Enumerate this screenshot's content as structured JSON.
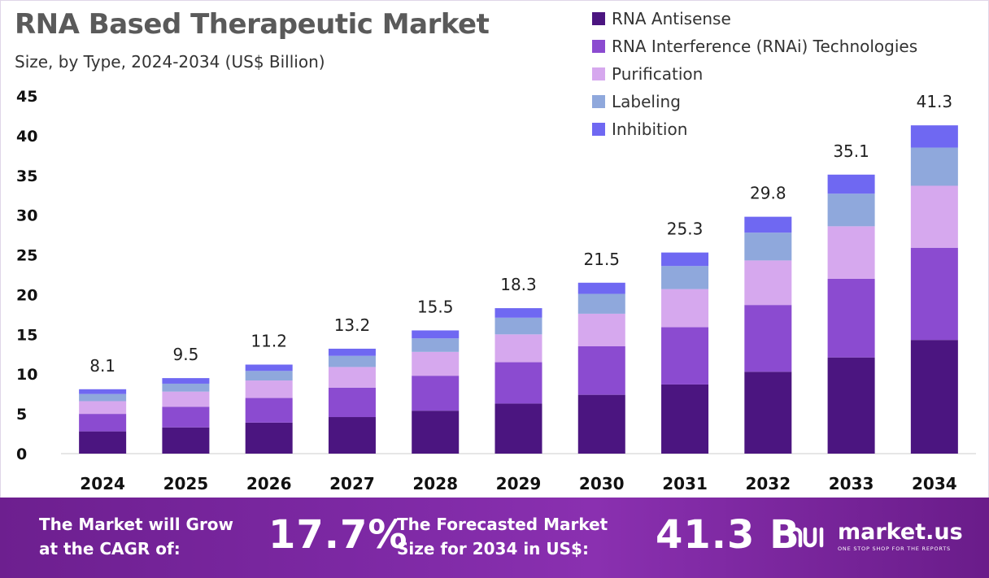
{
  "title": "RNA Based Therapeutic Market",
  "subtitle": "Size, by Type, 2024-2034 (US$ Billion)",
  "chart_data": {
    "type": "bar",
    "stacked": true,
    "title": "RNA Based Therapeutic Market",
    "subtitle": "Size, by Type, 2024-2034 (US$ Billion)",
    "xlabel": "",
    "ylabel": "",
    "ylim": [
      0,
      45
    ],
    "yticks": [
      0,
      5,
      10,
      15,
      20,
      25,
      30,
      35,
      40,
      45
    ],
    "grid": false,
    "legend_position": "top-right",
    "categories": [
      "2024",
      "2025",
      "2026",
      "2027",
      "2028",
      "2029",
      "2030",
      "2031",
      "2032",
      "2033",
      "2034"
    ],
    "totals": [
      "8.1",
      "9.5",
      "11.2",
      "13.2",
      "15.5",
      "18.3",
      "21.5",
      "25.3",
      "29.8",
      "35.1",
      "41.3"
    ],
    "series": [
      {
        "name": "RNA Antisense",
        "color": "#4b1580",
        "values": [
          2.8,
          3.3,
          3.9,
          4.6,
          5.4,
          6.3,
          7.4,
          8.7,
          10.3,
          12.1,
          14.3
        ]
      },
      {
        "name": "RNA Interference (RNAi) Technologies",
        "color": "#8b4bd0",
        "values": [
          2.2,
          2.6,
          3.1,
          3.7,
          4.4,
          5.2,
          6.1,
          7.2,
          8.4,
          9.9,
          11.6
        ]
      },
      {
        "name": "Purification",
        "color": "#d6a8ee",
        "values": [
          1.6,
          1.9,
          2.2,
          2.6,
          3.0,
          3.5,
          4.1,
          4.8,
          5.6,
          6.6,
          7.8
        ]
      },
      {
        "name": "Labeling",
        "color": "#8fa8dc",
        "values": [
          0.9,
          1.0,
          1.2,
          1.4,
          1.7,
          2.1,
          2.5,
          2.9,
          3.5,
          4.1,
          4.8
        ]
      },
      {
        "name": "Inhibition",
        "color": "#6f68f2",
        "values": [
          0.6,
          0.7,
          0.8,
          0.9,
          1.0,
          1.2,
          1.4,
          1.7,
          2.0,
          2.4,
          2.8
        ]
      }
    ]
  },
  "banner": {
    "cagr_label": "The Market will Grow\nat the CAGR of:",
    "cagr_value": "17.7%",
    "forecast_label": "The Forecasted Market\nSize for 2034 in US$:",
    "forecast_value": "41.3 B",
    "brand_name": "market.us",
    "brand_tagline": "ONE STOP SHOP FOR THE REPORTS"
  }
}
